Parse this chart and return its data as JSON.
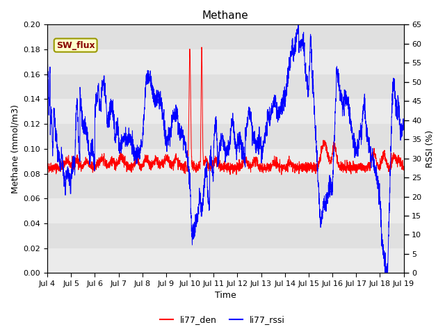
{
  "title": "Methane",
  "ylabel_left": "Methane (mmol/m3)",
  "ylabel_right": "RSSI (%)",
  "xlabel": "Time",
  "left_ylim": [
    0.0,
    0.2
  ],
  "right_ylim": [
    0,
    65
  ],
  "left_yticks": [
    0.0,
    0.02,
    0.04,
    0.06,
    0.08,
    0.1,
    0.12,
    0.14,
    0.16,
    0.18,
    0.2
  ],
  "right_yticks": [
    0,
    5,
    10,
    15,
    20,
    25,
    30,
    35,
    40,
    45,
    50,
    55,
    60,
    65
  ],
  "xtick_labels": [
    "Jul 4",
    "Jul 5",
    "Jul 6",
    "Jul 7",
    "Jul 8",
    "Jul 9",
    "Jul 10",
    "Jul 11",
    "Jul 12",
    "Jul 13",
    "Jul 14",
    "Jul 15",
    "Jul 16",
    "Jul 17",
    "Jul 18",
    "Jul 19"
  ],
  "sw_flux_label": "SW_flux",
  "legend_entries": [
    "li77_den",
    "li77_rssi"
  ],
  "line_colors": [
    "red",
    "blue"
  ],
  "background_color": "#e0e0e0",
  "band_color": "#ebebeb",
  "sw_flux_bg": "#ffffcc",
  "sw_flux_border": "#999900",
  "sw_flux_text_color": "#880000",
  "title_fontsize": 11,
  "axis_fontsize": 9,
  "tick_fontsize": 8
}
